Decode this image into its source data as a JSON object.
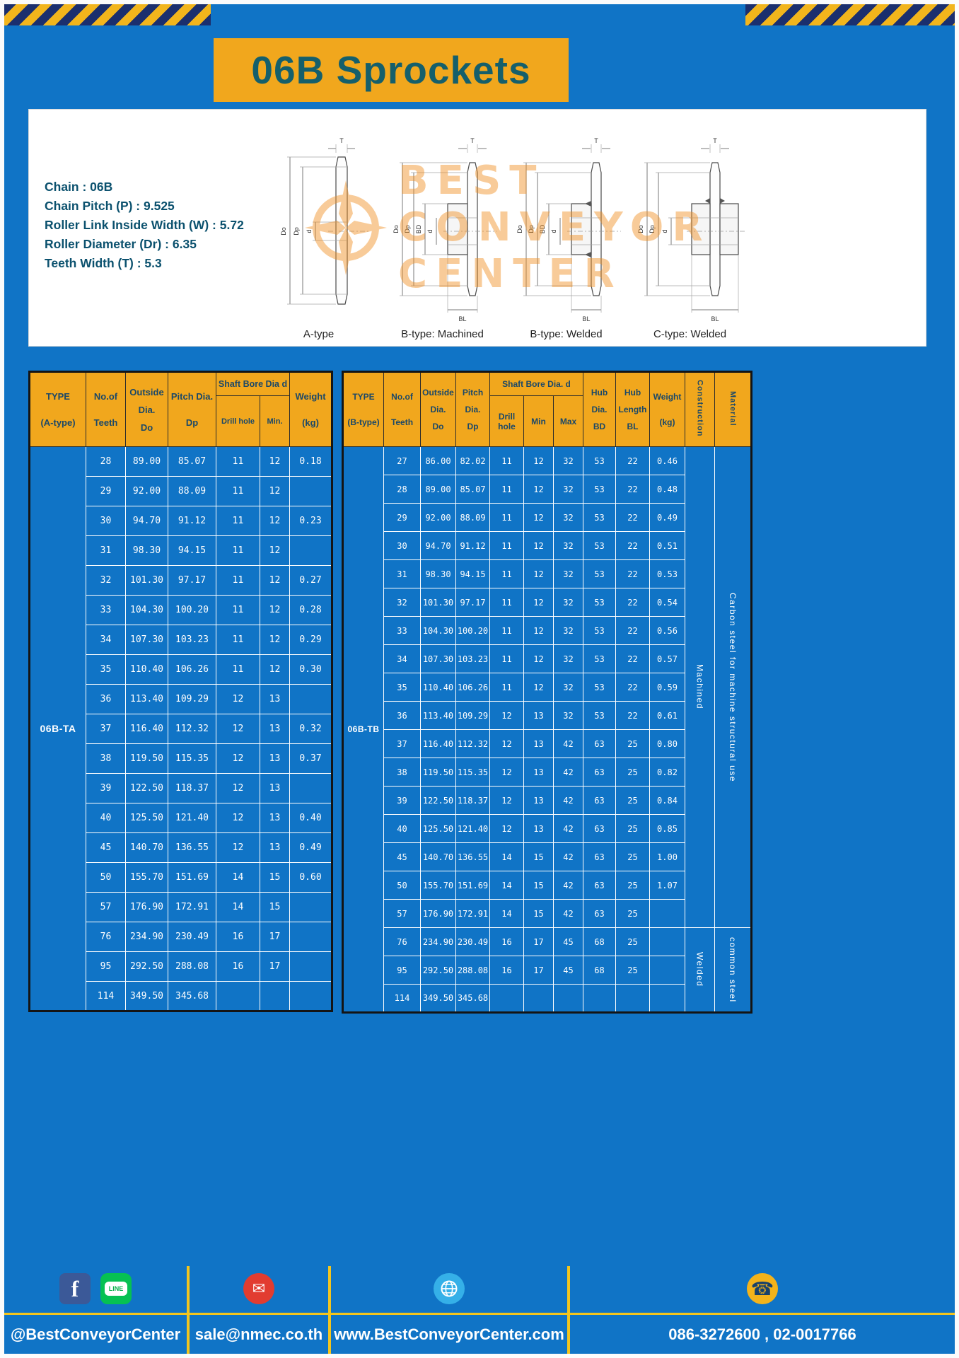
{
  "theme": {
    "blue": "#1074c6",
    "yellow": "#f1a71d",
    "teal_title": "#155f6b",
    "hazard_navy": "#1b2f6e",
    "watermark_orange": "#f08e1e"
  },
  "page": {
    "title": "06B Sprockets"
  },
  "specs": {
    "lines": [
      "Chain : 06B",
      "Chain Pitch (P) : 9.525",
      "Roller Link Inside Width (W) : 5.72",
      "Roller Diameter (Dr) : 6.35",
      "Teeth Width (T) : 5.3"
    ]
  },
  "watermark": {
    "lines": [
      "BEST",
      "CONVEYOR",
      "CENTER"
    ]
  },
  "drawings": {
    "captions": [
      "A-type",
      "B-type: Machined",
      "B-type: Welded",
      "C-type: Welded"
    ],
    "labels": {
      "t": "T",
      "do": "Do",
      "dp": "Dp",
      "d": "d",
      "bd": "BD",
      "bl": "BL"
    }
  },
  "table_a": {
    "headers": {
      "type": [
        "TYPE",
        "(A-type)"
      ],
      "teeth": [
        "No.of",
        "Teeth"
      ],
      "outside": [
        "Outside",
        "Dia.",
        "Do"
      ],
      "pitch": [
        "Pitch Dia.",
        "Dp"
      ],
      "shaft_group": "Shaft Bore Dia d",
      "drill": "Drill hole",
      "min": "Min.",
      "weight": [
        "Weight",
        "(kg)"
      ]
    },
    "type_value": "06B-TA",
    "rows": [
      [
        "28",
        "89.00",
        "85.07",
        "11",
        "12",
        "0.18"
      ],
      [
        "29",
        "92.00",
        "88.09",
        "11",
        "12",
        ""
      ],
      [
        "30",
        "94.70",
        "91.12",
        "11",
        "12",
        "0.23"
      ],
      [
        "31",
        "98.30",
        "94.15",
        "11",
        "12",
        ""
      ],
      [
        "32",
        "101.30",
        "97.17",
        "11",
        "12",
        "0.27"
      ],
      [
        "33",
        "104.30",
        "100.20",
        "11",
        "12",
        "0.28"
      ],
      [
        "34",
        "107.30",
        "103.23",
        "11",
        "12",
        "0.29"
      ],
      [
        "35",
        "110.40",
        "106.26",
        "11",
        "12",
        "0.30"
      ],
      [
        "36",
        "113.40",
        "109.29",
        "12",
        "13",
        ""
      ],
      [
        "37",
        "116.40",
        "112.32",
        "12",
        "13",
        "0.32"
      ],
      [
        "38",
        "119.50",
        "115.35",
        "12",
        "13",
        "0.37"
      ],
      [
        "39",
        "122.50",
        "118.37",
        "12",
        "13",
        ""
      ],
      [
        "40",
        "125.50",
        "121.40",
        "12",
        "13",
        "0.40"
      ],
      [
        "45",
        "140.70",
        "136.55",
        "12",
        "13",
        "0.49"
      ],
      [
        "50",
        "155.70",
        "151.69",
        "14",
        "15",
        "0.60"
      ],
      [
        "57",
        "176.90",
        "172.91",
        "14",
        "15",
        ""
      ],
      [
        "76",
        "234.90",
        "230.49",
        "16",
        "17",
        ""
      ],
      [
        "95",
        "292.50",
        "288.08",
        "16",
        "17",
        ""
      ],
      [
        "114",
        "349.50",
        "345.68",
        "",
        "",
        ""
      ]
    ]
  },
  "table_b": {
    "headers": {
      "type": [
        "TYPE",
        "(B-type)"
      ],
      "teeth": [
        "No.of",
        "Teeth"
      ],
      "outside": [
        "Outside",
        "Dia.",
        "Do"
      ],
      "pitch": [
        "Pitch",
        "Dia.",
        "Dp"
      ],
      "shaft_group": "Shaft Bore Dia. d",
      "drill": "Drill hole",
      "min": "Min",
      "max": "Max",
      "hub_dia": [
        "Hub",
        "Dia.",
        "BD"
      ],
      "hub_len": [
        "Hub",
        "Length",
        "BL"
      ],
      "weight": [
        "Weight",
        "(kg)"
      ],
      "construction": "Construction",
      "material": "Material"
    },
    "type_value": "06B-TB",
    "construction_values": [
      "Machined",
      "Welded"
    ],
    "material_values": [
      "Carbon steel for machine structural use",
      "common steel"
    ],
    "rows": [
      [
        "27",
        "86.00",
        "82.02",
        "11",
        "12",
        "32",
        "53",
        "22",
        "0.46"
      ],
      [
        "28",
        "89.00",
        "85.07",
        "11",
        "12",
        "32",
        "53",
        "22",
        "0.48"
      ],
      [
        "29",
        "92.00",
        "88.09",
        "11",
        "12",
        "32",
        "53",
        "22",
        "0.49"
      ],
      [
        "30",
        "94.70",
        "91.12",
        "11",
        "12",
        "32",
        "53",
        "22",
        "0.51"
      ],
      [
        "31",
        "98.30",
        "94.15",
        "11",
        "12",
        "32",
        "53",
        "22",
        "0.53"
      ],
      [
        "32",
        "101.30",
        "97.17",
        "11",
        "12",
        "32",
        "53",
        "22",
        "0.54"
      ],
      [
        "33",
        "104.30",
        "100.20",
        "11",
        "12",
        "32",
        "53",
        "22",
        "0.56"
      ],
      [
        "34",
        "107.30",
        "103.23",
        "11",
        "12",
        "32",
        "53",
        "22",
        "0.57"
      ],
      [
        "35",
        "110.40",
        "106.26",
        "11",
        "12",
        "32",
        "53",
        "22",
        "0.59"
      ],
      [
        "36",
        "113.40",
        "109.29",
        "12",
        "13",
        "32",
        "53",
        "22",
        "0.61"
      ],
      [
        "37",
        "116.40",
        "112.32",
        "12",
        "13",
        "42",
        "63",
        "25",
        "0.80"
      ],
      [
        "38",
        "119.50",
        "115.35",
        "12",
        "13",
        "42",
        "63",
        "25",
        "0.82"
      ],
      [
        "39",
        "122.50",
        "118.37",
        "12",
        "13",
        "42",
        "63",
        "25",
        "0.84"
      ],
      [
        "40",
        "125.50",
        "121.40",
        "12",
        "13",
        "42",
        "63",
        "25",
        "0.85"
      ],
      [
        "45",
        "140.70",
        "136.55",
        "14",
        "15",
        "42",
        "63",
        "25",
        "1.00"
      ],
      [
        "50",
        "155.70",
        "151.69",
        "14",
        "15",
        "42",
        "63",
        "25",
        "1.07"
      ],
      [
        "57",
        "176.90",
        "172.91",
        "14",
        "15",
        "42",
        "63",
        "25",
        ""
      ],
      [
        "76",
        "234.90",
        "230.49",
        "16",
        "17",
        "45",
        "68",
        "25",
        ""
      ],
      [
        "95",
        "292.50",
        "288.08",
        "16",
        "17",
        "45",
        "68",
        "25",
        ""
      ],
      [
        "114",
        "349.50",
        "345.68",
        "",
        "",
        "",
        "",
        "",
        ""
      ]
    ]
  },
  "footer": {
    "fb_letter": "f",
    "line_badge": "LINE",
    "sections": [
      {
        "label": "@BestConveyorCenter"
      },
      {
        "label": "sale@nmec.co.th"
      },
      {
        "label": "www.BestConveyorCenter.com"
      },
      {
        "label": "086-3272600 , 02-0017766"
      }
    ]
  }
}
